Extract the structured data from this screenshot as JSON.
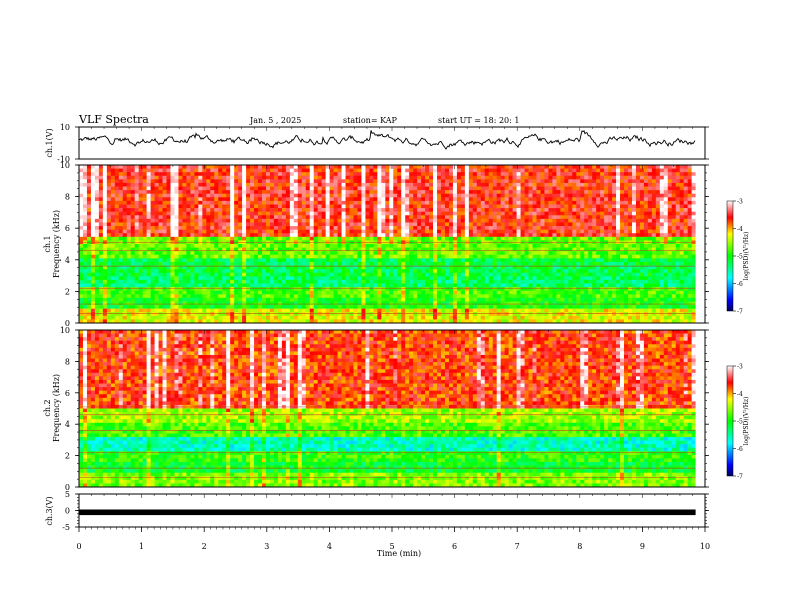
{
  "header": {
    "title": "VLF Spectra",
    "date": "Jan. 5 , 2025",
    "station": "station= KAP",
    "start": "start UT =  18: 20: 1"
  },
  "chart_data": [
    {
      "type": "line",
      "panel": "ch1-voltage",
      "ylabel": "ch.1(V)",
      "ylim": [
        -10,
        10
      ],
      "yticks": [
        {
          "value": 10,
          "label": "10"
        },
        {
          "value": -10,
          "label": "-10"
        }
      ],
      "series": [
        {
          "name": "ch.1",
          "description": "noisy waveform oscillating about 0 V, mostly between -3 and +6 V"
        }
      ]
    },
    {
      "type": "heatmap",
      "panel": "ch1-spectrogram",
      "ylabel": "ch.1\nFrequency (kHz)",
      "ylim": [
        0,
        10
      ],
      "yticks": [
        {
          "value": 0,
          "label": "0"
        },
        {
          "value": 2,
          "label": "2"
        },
        {
          "value": 4,
          "label": "4"
        },
        {
          "value": 6,
          "label": "6"
        },
        {
          "value": 8,
          "label": "8"
        },
        {
          "value": 10,
          "label": "10"
        }
      ],
      "colorbar": {
        "label": "log(PSD)(V²/Hz)",
        "range": [
          -7,
          -3
        ],
        "ticks": [
          {
            "value": -3,
            "label": "-3"
          },
          {
            "value": -4,
            "label": "-4"
          },
          {
            "value": -5,
            "label": "-5"
          },
          {
            "value": -6,
            "label": "-6"
          },
          {
            "value": -7,
            "label": "-7"
          }
        ]
      },
      "bands_khz": [
        {
          "from": 0.0,
          "to": 0.8,
          "level": -4.3
        },
        {
          "from": 0.8,
          "to": 1.5,
          "level": -5.0
        },
        {
          "from": 1.5,
          "to": 2.3,
          "level": -4.8
        },
        {
          "from": 2.3,
          "to": 3.0,
          "level": -5.3
        },
        {
          "from": 3.0,
          "to": 4.2,
          "level": -5.2
        },
        {
          "from": 4.2,
          "to": 5.5,
          "level": -4.7
        },
        {
          "from": 5.5,
          "to": 10.0,
          "level": -3.6
        }
      ]
    },
    {
      "type": "heatmap",
      "panel": "ch2-spectrogram",
      "ylabel": "ch.2\nFrequency (kHz)",
      "ylim": [
        0,
        10
      ],
      "yticks": [
        {
          "value": 0,
          "label": "0"
        },
        {
          "value": 2,
          "label": "2"
        },
        {
          "value": 4,
          "label": "4"
        },
        {
          "value": 6,
          "label": "6"
        },
        {
          "value": 8,
          "label": "8"
        },
        {
          "value": 10,
          "label": "10"
        }
      ],
      "colorbar": {
        "label": "log(PSD)(V²/Hz)",
        "range": [
          -7,
          -3
        ],
        "ticks": [
          {
            "value": -3,
            "label": "-3"
          },
          {
            "value": -4,
            "label": "-4"
          },
          {
            "value": -5,
            "label": "-5"
          },
          {
            "value": -6,
            "label": "-6"
          },
          {
            "value": -7,
            "label": "-7"
          }
        ]
      },
      "bands_khz": [
        {
          "from": 0.0,
          "to": 0.8,
          "level": -4.6
        },
        {
          "from": 0.8,
          "to": 1.6,
          "level": -5.1
        },
        {
          "from": 1.6,
          "to": 2.2,
          "level": -4.9
        },
        {
          "from": 2.2,
          "to": 3.2,
          "level": -5.6
        },
        {
          "from": 3.2,
          "to": 4.0,
          "level": -4.8
        },
        {
          "from": 4.0,
          "to": 5.0,
          "level": -4.5
        },
        {
          "from": 5.0,
          "to": 10.0,
          "level": -3.7
        }
      ]
    },
    {
      "type": "line",
      "panel": "ch3-voltage",
      "ylabel": "ch.3(V)",
      "ylim": [
        -5,
        5
      ],
      "yticks": [
        {
          "value": 5,
          "label": "5"
        },
        {
          "value": 0,
          "label": "0"
        },
        {
          "value": -5,
          "label": "-5"
        }
      ],
      "series": [
        {
          "name": "ch.3",
          "description": "flat thick trace near -0.3 V"
        }
      ],
      "xlabel": "Time (min)",
      "xlim": [
        0,
        10
      ],
      "xticks": [
        {
          "value": 0,
          "label": "0"
        },
        {
          "value": 1,
          "label": "1"
        },
        {
          "value": 2,
          "label": "2"
        },
        {
          "value": 3,
          "label": "3"
        },
        {
          "value": 4,
          "label": "4"
        },
        {
          "value": 5,
          "label": "5"
        },
        {
          "value": 6,
          "label": "6"
        },
        {
          "value": 7,
          "label": "7"
        },
        {
          "value": 8,
          "label": "8"
        },
        {
          "value": 9,
          "label": "9"
        },
        {
          "value": 10,
          "label": "10"
        }
      ],
      "data_end_min": 9.85
    }
  ]
}
